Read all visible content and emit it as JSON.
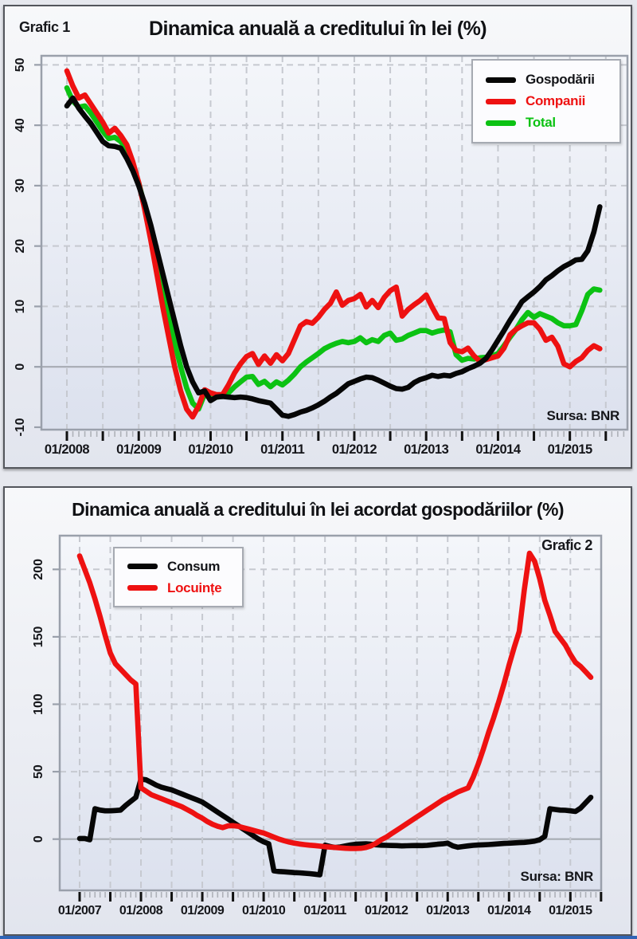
{
  "source_note": "Sursa: BNR",
  "colors": {
    "black": "#060606",
    "red": "#ee1111",
    "green": "#0cc213",
    "grid": "#c6c9d0",
    "zero_line": "#a7abb3",
    "plot_border": "#9aa0ab"
  },
  "chart_data": [
    {
      "type": "line",
      "panel_label": "Grafic 1",
      "title": "Dinamica anuală a creditului în lei (%)",
      "source": "Sursa: BNR",
      "x_monthly_from": "01/2008",
      "x_tick_labels": [
        "01/2008",
        "01/2009",
        "01/2010",
        "01/2011",
        "01/2012",
        "01/2013",
        "01/2014",
        "01/2015"
      ],
      "y_ticks": [
        50,
        40,
        30,
        20,
        10,
        0,
        -10
      ],
      "ylim": [
        -10.4,
        51.5
      ],
      "grid": "dashed",
      "legend_position": "top-right",
      "series": [
        {
          "name": "Gospodării",
          "color": "#060606",
          "values": [
            43.2,
            44.5,
            42.8,
            41.5,
            40.3,
            38.8,
            37.3,
            36.6,
            36.5,
            36.2,
            34.5,
            32.5,
            30,
            27,
            23.5,
            19.5,
            15.5,
            11.5,
            7.5,
            3.5,
            0,
            -2.5,
            -4.3,
            -4,
            -5.6,
            -5,
            -4.9,
            -5,
            -5.1,
            -5,
            -5.1,
            -5.3,
            -5.6,
            -5.8,
            -6,
            -7,
            -8,
            -8.2,
            -7.9,
            -7.5,
            -7.2,
            -6.8,
            -6.3,
            -5.7,
            -5,
            -4.4,
            -3.6,
            -2.8,
            -2.4,
            -2,
            -1.7,
            -1.8,
            -2.2,
            -2.7,
            -3.2,
            -3.6,
            -3.7,
            -3.4,
            -2.6,
            -2.1,
            -1.8,
            -1.4,
            -1.6,
            -1.4,
            -1.5,
            -1.1,
            -0.8,
            -0.3,
            0.1,
            0.6,
            1.4,
            2.8,
            4.4,
            6,
            7.7,
            9.2,
            10.8,
            11.6,
            12.4,
            13.3,
            14.4,
            15.1,
            15.9,
            16.6,
            17.1,
            17.7,
            17.8,
            19.2,
            22.3,
            26.5
          ]
        },
        {
          "name": "Companii",
          "color": "#ee1111",
          "values": [
            49,
            46.5,
            44.5,
            45,
            43.5,
            42,
            40.5,
            38.7,
            39.5,
            38.3,
            36.8,
            34,
            30.5,
            26,
            21,
            15.5,
            10,
            5,
            0,
            -4,
            -7,
            -8.3,
            -6.5,
            -3.8,
            -4.3,
            -4.6,
            -4.6,
            -3,
            -1,
            0.5,
            1.7,
            2.2,
            0.4,
            1.8,
            0.6,
            2,
            1,
            2.2,
            4.5,
            6.8,
            7.5,
            7.2,
            8.2,
            9.5,
            10.5,
            12.4,
            10.2,
            11,
            11.3,
            12,
            9.9,
            11,
            9.8,
            11.5,
            12.6,
            13.2,
            8.4,
            9.5,
            10.3,
            11,
            11.9,
            9.9,
            8.1,
            8,
            4,
            2.7,
            2.5,
            3.1,
            1.8,
            0.9,
            1.2,
            1.5,
            1.8,
            3.1,
            5.3,
            6.2,
            6.8,
            7.3,
            7.3,
            6.2,
            4.4,
            4.9,
            3.4,
            0.5,
            0,
            0.9,
            1.5,
            2.7,
            3.5,
            3
          ]
        },
        {
          "name": "Total",
          "color": "#0cc213",
          "values": [
            46.2,
            44,
            43,
            43.2,
            42,
            40.5,
            39,
            37.8,
            38,
            37.3,
            35.8,
            33.5,
            30.5,
            26.5,
            22,
            17.5,
            13,
            8.5,
            4,
            0,
            -3.5,
            -6,
            -7,
            -4.5,
            -5.2,
            -5,
            -4.9,
            -4.3,
            -3.3,
            -2.5,
            -1.7,
            -1.6,
            -2.9,
            -2.4,
            -3.3,
            -2.5,
            -3,
            -2.2,
            -1.2,
            0,
            0.8,
            1.5,
            2.2,
            3,
            3.5,
            3.9,
            4.2,
            4,
            4.2,
            4.8,
            4,
            4.5,
            4.2,
            5.2,
            5.6,
            4.4,
            4.6,
            5.2,
            5.6,
            6,
            6,
            5.6,
            5.9,
            6.1,
            5.8,
            2,
            1.1,
            1.4,
            1.3,
            1.5,
            1.6,
            1.8,
            2.2,
            3.5,
            4.9,
            6.2,
            7.8,
            9,
            8.2,
            8.8,
            8.4,
            8,
            7.3,
            6.8,
            6.8,
            7,
            9.3,
            12,
            12.9,
            12.7
          ]
        }
      ]
    },
    {
      "type": "line",
      "panel_label": "Grafic 2",
      "title": "Dinamica anuală a creditului în lei acordat gospodăriilor (%)",
      "source": "Sursa: BNR",
      "x_monthly_from": "01/2007",
      "x_tick_labels": [
        "01/2007",
        "01/2008",
        "01/2009",
        "01/2010",
        "01/2011",
        "01/2012",
        "01/2013",
        "01/2014",
        "01/2015"
      ],
      "y_ticks": [
        200,
        150,
        100,
        50,
        0
      ],
      "ylim": [
        -38,
        225
      ],
      "grid": "dashed",
      "legend_position": "top-left",
      "series": [
        {
          "name": "Consum",
          "color": "#060606",
          "values": [
            0.5,
            0.5,
            -0.5,
            22.5,
            21.5,
            21,
            21,
            21.2,
            21.5,
            25,
            28,
            31,
            44.5,
            44,
            42,
            40,
            38.5,
            37.5,
            36.5,
            35,
            33.5,
            32,
            30.5,
            29,
            27.5,
            25,
            22.5,
            20,
            17.5,
            15,
            12.5,
            10,
            7.5,
            5,
            2.5,
            0,
            -2,
            -3.5,
            -23.5,
            -24,
            -24.2,
            -24.5,
            -24.8,
            -25,
            -25.3,
            -25.6,
            -26,
            -26.5,
            -4.5,
            -5.5,
            -6.2,
            -5.8,
            -5,
            -4.3,
            -3.8,
            -3.6,
            -3.5,
            -3.8,
            -4.2,
            -4.5,
            -4.6,
            -4.7,
            -4.8,
            -5,
            -4.9,
            -4.8,
            -4.7,
            -4.8,
            -4.6,
            -4.2,
            -3.8,
            -3.5,
            -3,
            -5,
            -6,
            -5.5,
            -5,
            -4.6,
            -4.4,
            -4.2,
            -4,
            -3.8,
            -3.5,
            -3.2,
            -3,
            -2.8,
            -2.6,
            -2.4,
            -2,
            -1.5,
            -0.5,
            2,
            22.5,
            22,
            21.5,
            21.4,
            21,
            20.5,
            23,
            27,
            31
          ]
        },
        {
          "name": "Locuințe",
          "color": "#ee1111",
          "values": [
            210,
            200,
            190,
            178,
            165,
            151,
            138,
            130,
            126,
            122,
            118,
            115,
            38,
            35.5,
            33,
            31.5,
            30,
            28.5,
            27,
            25.5,
            24,
            22,
            20,
            17.5,
            15.5,
            13,
            11,
            9.5,
            8.5,
            9.8,
            10,
            9.5,
            8.5,
            7.5,
            6.5,
            5.5,
            4.5,
            3,
            1.5,
            0,
            -1.2,
            -2.2,
            -3,
            -3.6,
            -4.1,
            -4.5,
            -4.8,
            -5.2,
            -5.6,
            -5.9,
            -6.2,
            -6.5,
            -6.8,
            -7,
            -7,
            -6.8,
            -6.2,
            -5,
            -3,
            -0.5,
            1.5,
            4,
            6.5,
            9,
            11.5,
            14,
            16.5,
            19,
            21.5,
            24,
            26.5,
            29,
            31,
            33,
            35,
            36.5,
            38,
            46,
            56,
            67,
            79,
            90,
            102,
            115,
            129,
            142,
            154,
            185,
            212,
            206,
            193,
            177,
            166,
            154,
            149,
            144,
            137,
            131,
            128,
            124,
            120
          ]
        }
      ]
    }
  ]
}
